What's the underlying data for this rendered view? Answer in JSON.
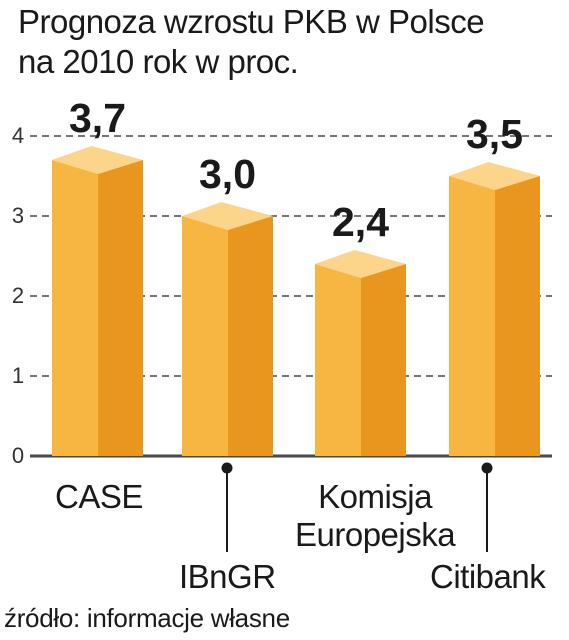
{
  "title": [
    "Prognoza wzrostu PKB w Polsce",
    "na 2010 rok w proc."
  ],
  "source": "źródło: informacje własne",
  "colors": {
    "front": "#F7B541",
    "side": "#E9961E",
    "top": "#FCD58A",
    "grid": "#4a4a4a",
    "text": "#1a1a1a"
  },
  "chart_data": {
    "type": "bar",
    "title": "Prognoza wzrostu PKB w Polsce na 2010 rok w proc.",
    "categories": [
      "CASE",
      "IBnGR",
      "Komisja Europejska",
      "Citibank"
    ],
    "values": [
      3.7,
      3.0,
      2.4,
      3.5
    ],
    "value_labels": [
      "3,7",
      "3,0",
      "2,4",
      "3,5"
    ],
    "yticks": [
      0,
      1,
      2,
      3,
      4
    ],
    "ylim": [
      0,
      4
    ],
    "grid": true,
    "legend": "none"
  }
}
